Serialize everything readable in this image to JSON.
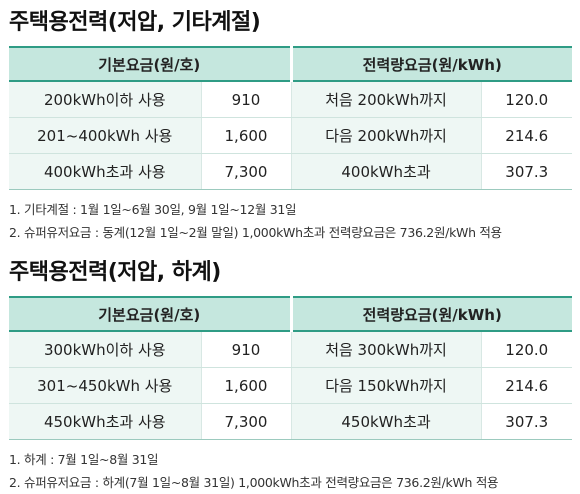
{
  "sections": [
    {
      "title": "주택용전력(저압, 기타계절)",
      "headers": {
        "basic_fee": "기본요금(원/호)",
        "energy_fee": "전력량요금(원/kWh)"
      },
      "rows": [
        {
          "basic_label": "200kWh이하 사용",
          "basic_value": "910",
          "energy_label": "처음 200kWh까지",
          "energy_value": "120.0"
        },
        {
          "basic_label": "201~400kWh 사용",
          "basic_value": "1,600",
          "energy_label": "다음 200kWh까지",
          "energy_value": "214.6"
        },
        {
          "basic_label": "400kWh초과 사용",
          "basic_value": "7,300",
          "energy_label": "400kWh초과",
          "energy_value": "307.3"
        }
      ],
      "notes": [
        "1. 기타계절 : 1월 1일~6월 30일, 9월 1일~12월 31일",
        "2. 슈퍼유저요금 : 동계(12월 1일~2월 말일) 1,000kWh초과 전력량요금은 736.2원/kWh 적용"
      ]
    },
    {
      "title": "주택용전력(저압, 하계)",
      "headers": {
        "basic_fee": "기본요금(원/호)",
        "energy_fee": "전력량요금(원/kWh)"
      },
      "rows": [
        {
          "basic_label": "300kWh이하 사용",
          "basic_value": "910",
          "energy_label": "처음 300kWh까지",
          "energy_value": "120.0"
        },
        {
          "basic_label": "301~450kWh 사용",
          "basic_value": "1,600",
          "energy_label": "다음 150kWh까지",
          "energy_value": "214.6"
        },
        {
          "basic_label": "450kWh초과 사용",
          "basic_value": "7,300",
          "energy_label": "450kWh초과",
          "energy_value": "307.3"
        }
      ],
      "notes": [
        "1. 하계 : 7월 1일~8월 31일",
        "2. 슈퍼유저요금 : 하계(7월 1일~8월 31일) 1,000kWh초과 전력량요금은 736.2원/kWh 적용"
      ]
    }
  ],
  "colors": {
    "header_bg": "#c5e7de",
    "header_rule": "#2f9c85",
    "label_bg": "#eef7f4"
  }
}
